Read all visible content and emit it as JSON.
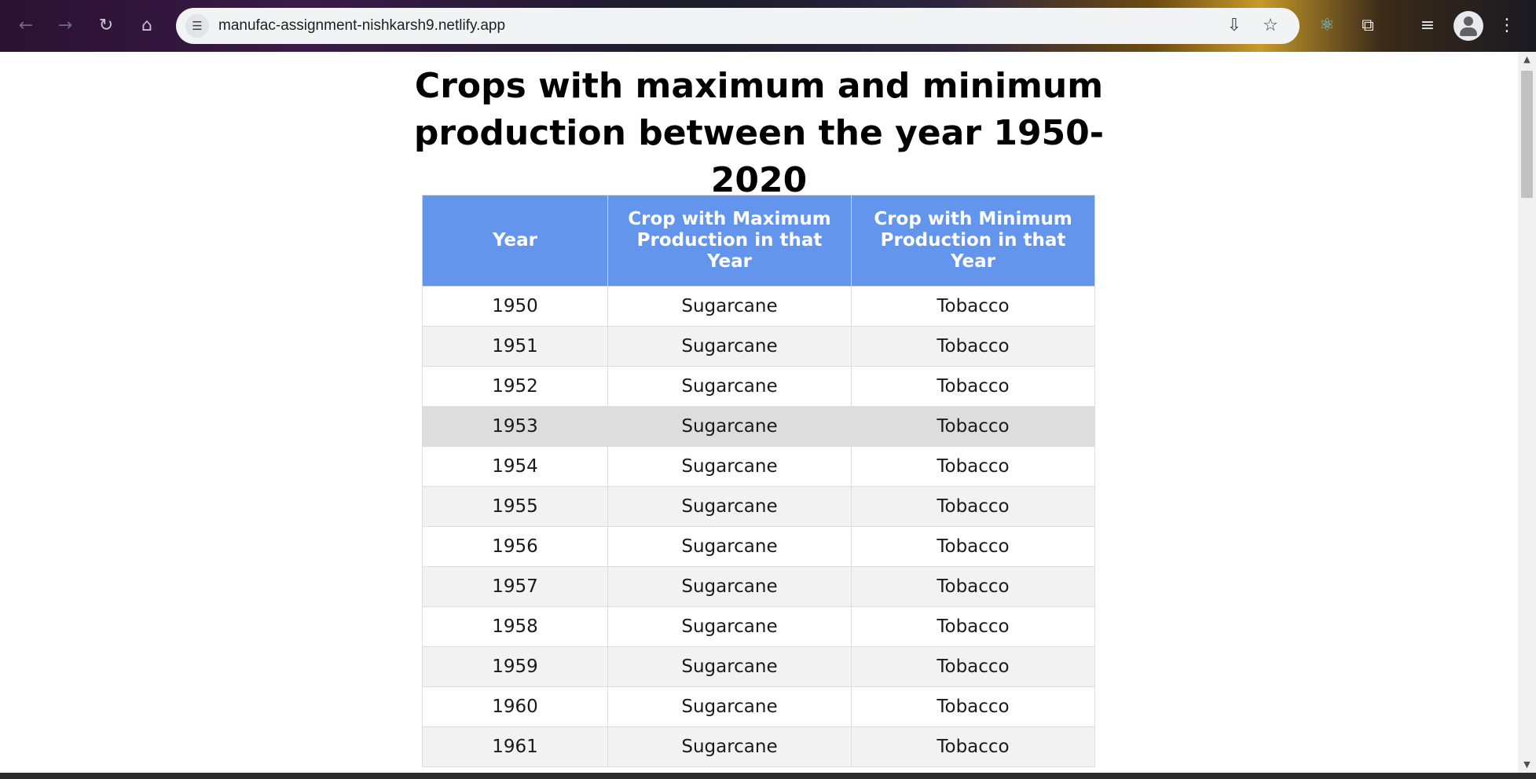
{
  "browser": {
    "url": "manufac-assignment-nishkarsh9.netlify.app",
    "icons": [
      "back-arrow-icon",
      "forward-arrow-icon",
      "reload-icon",
      "home-icon",
      "site-info-icon",
      "install-app-icon",
      "bookmark-star-icon",
      "react-devtools-icon",
      "extensions-puzzle-icon",
      "reading-list-icon",
      "profile-avatar-icon",
      "more-menu-icon"
    ]
  },
  "page": {
    "title_line1": "Crops with maximum and minimum",
    "title_line2": "production between the year 1950-2020"
  },
  "table": {
    "headers": {
      "year": "Year",
      "max": "Crop with Maximum Production in that Year",
      "min": "Crop with Minimum Production in that Year"
    },
    "header_color": "#6495ed",
    "rows": [
      {
        "year": "1950",
        "max": "Sugarcane",
        "min": "Tobacco"
      },
      {
        "year": "1951",
        "max": "Sugarcane",
        "min": "Tobacco"
      },
      {
        "year": "1952",
        "max": "Sugarcane",
        "min": "Tobacco"
      },
      {
        "year": "1953",
        "max": "Sugarcane",
        "min": "Tobacco"
      },
      {
        "year": "1954",
        "max": "Sugarcane",
        "min": "Tobacco"
      },
      {
        "year": "1955",
        "max": "Sugarcane",
        "min": "Tobacco"
      },
      {
        "year": "1956",
        "max": "Sugarcane",
        "min": "Tobacco"
      },
      {
        "year": "1957",
        "max": "Sugarcane",
        "min": "Tobacco"
      },
      {
        "year": "1958",
        "max": "Sugarcane",
        "min": "Tobacco"
      },
      {
        "year": "1959",
        "max": "Sugarcane",
        "min": "Tobacco"
      },
      {
        "year": "1960",
        "max": "Sugarcane",
        "min": "Tobacco"
      },
      {
        "year": "1961",
        "max": "Sugarcane",
        "min": "Tobacco"
      }
    ]
  }
}
